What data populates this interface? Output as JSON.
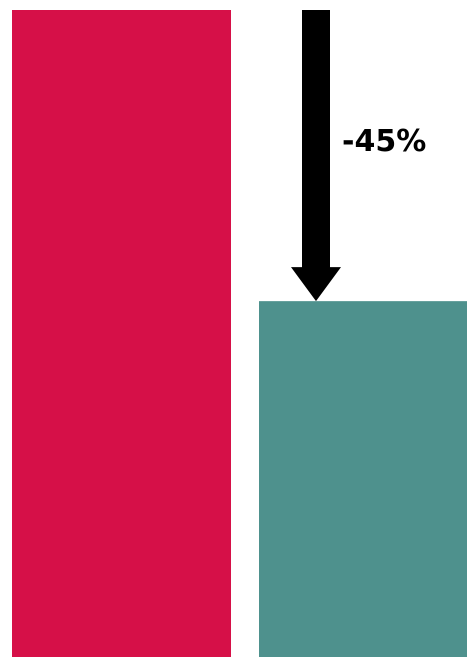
{
  "chart_data": {
    "type": "bar",
    "categories": [
      "",
      ""
    ],
    "values": [
      100,
      55
    ],
    "ylim": [
      0,
      100
    ],
    "grid": false,
    "colors": [
      "#d61048",
      "#4e918d"
    ],
    "annotation": {
      "type": "arrow-down",
      "label": "-45%",
      "color": "#000000"
    }
  }
}
